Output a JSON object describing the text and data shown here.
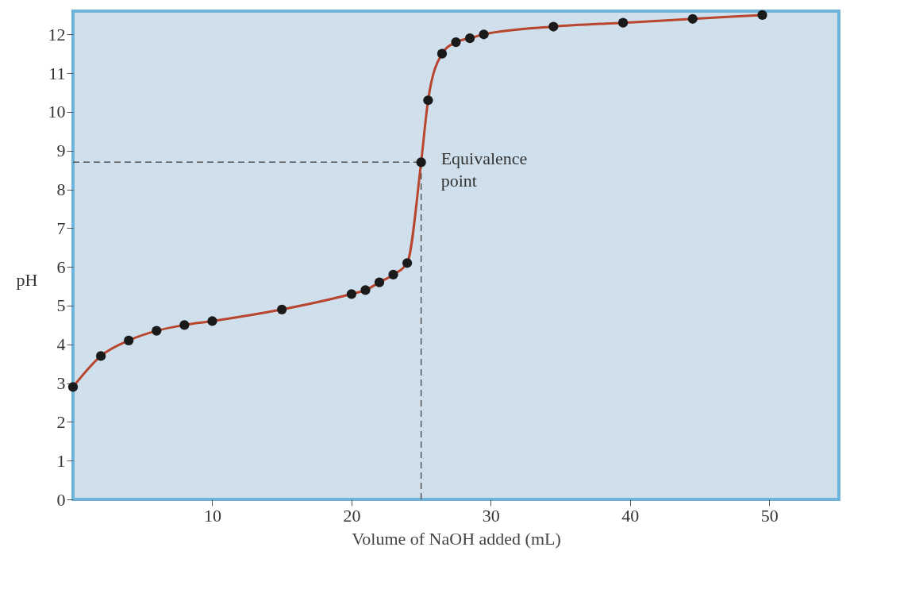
{
  "chart_data": {
    "type": "line",
    "xlabel": "Volume of NaOH added (mL)",
    "ylabel": "pH",
    "x": [
      0,
      2,
      4,
      6,
      8,
      10,
      15,
      20,
      21,
      22,
      23,
      24,
      25,
      25.5,
      26.5,
      27.5,
      28.5,
      29.5,
      34.5,
      39.5,
      44.5,
      49.5
    ],
    "series": [
      {
        "color": "#b8452e",
        "marker": "none",
        "values": [
          2.9,
          3.7,
          4.1,
          4.35,
          4.5,
          4.6,
          4.9,
          5.3,
          5.4,
          5.6,
          5.8,
          6.1,
          8.7,
          10.3,
          11.5,
          11.8,
          11.9,
          12.0,
          12.2,
          12.3,
          12.4,
          12.5
        ]
      },
      {
        "type": "scatter",
        "marker": "circle",
        "color": "#1a1a1a",
        "values": [
          2.9,
          3.7,
          4.1,
          4.35,
          4.5,
          4.6,
          4.9,
          5.3,
          5.4,
          5.6,
          5.8,
          6.1,
          8.7,
          10.3,
          11.5,
          11.8,
          11.9,
          12.0,
          12.2,
          12.3,
          12.4,
          12.5
        ]
      }
    ],
    "line_style": "solid",
    "xlim": [
      0,
      55
    ],
    "xticks": [
      10,
      20,
      30,
      40,
      50
    ],
    "ylim": [
      0,
      12.6
    ],
    "yticks": [
      0,
      1,
      2,
      3,
      4,
      5,
      6,
      7,
      8,
      9,
      10,
      11,
      12
    ],
    "grid": false,
    "ref_lines": [
      {
        "axis": "y",
        "value": 8.7,
        "line_style": "dashed",
        "color": "#555555"
      },
      {
        "axis": "x",
        "value": 25,
        "line_style": "dashed",
        "color": "#555555"
      }
    ],
    "annotations": [
      {
        "text": "Equivalence point",
        "x": 25,
        "y": 8.7
      }
    ]
  }
}
